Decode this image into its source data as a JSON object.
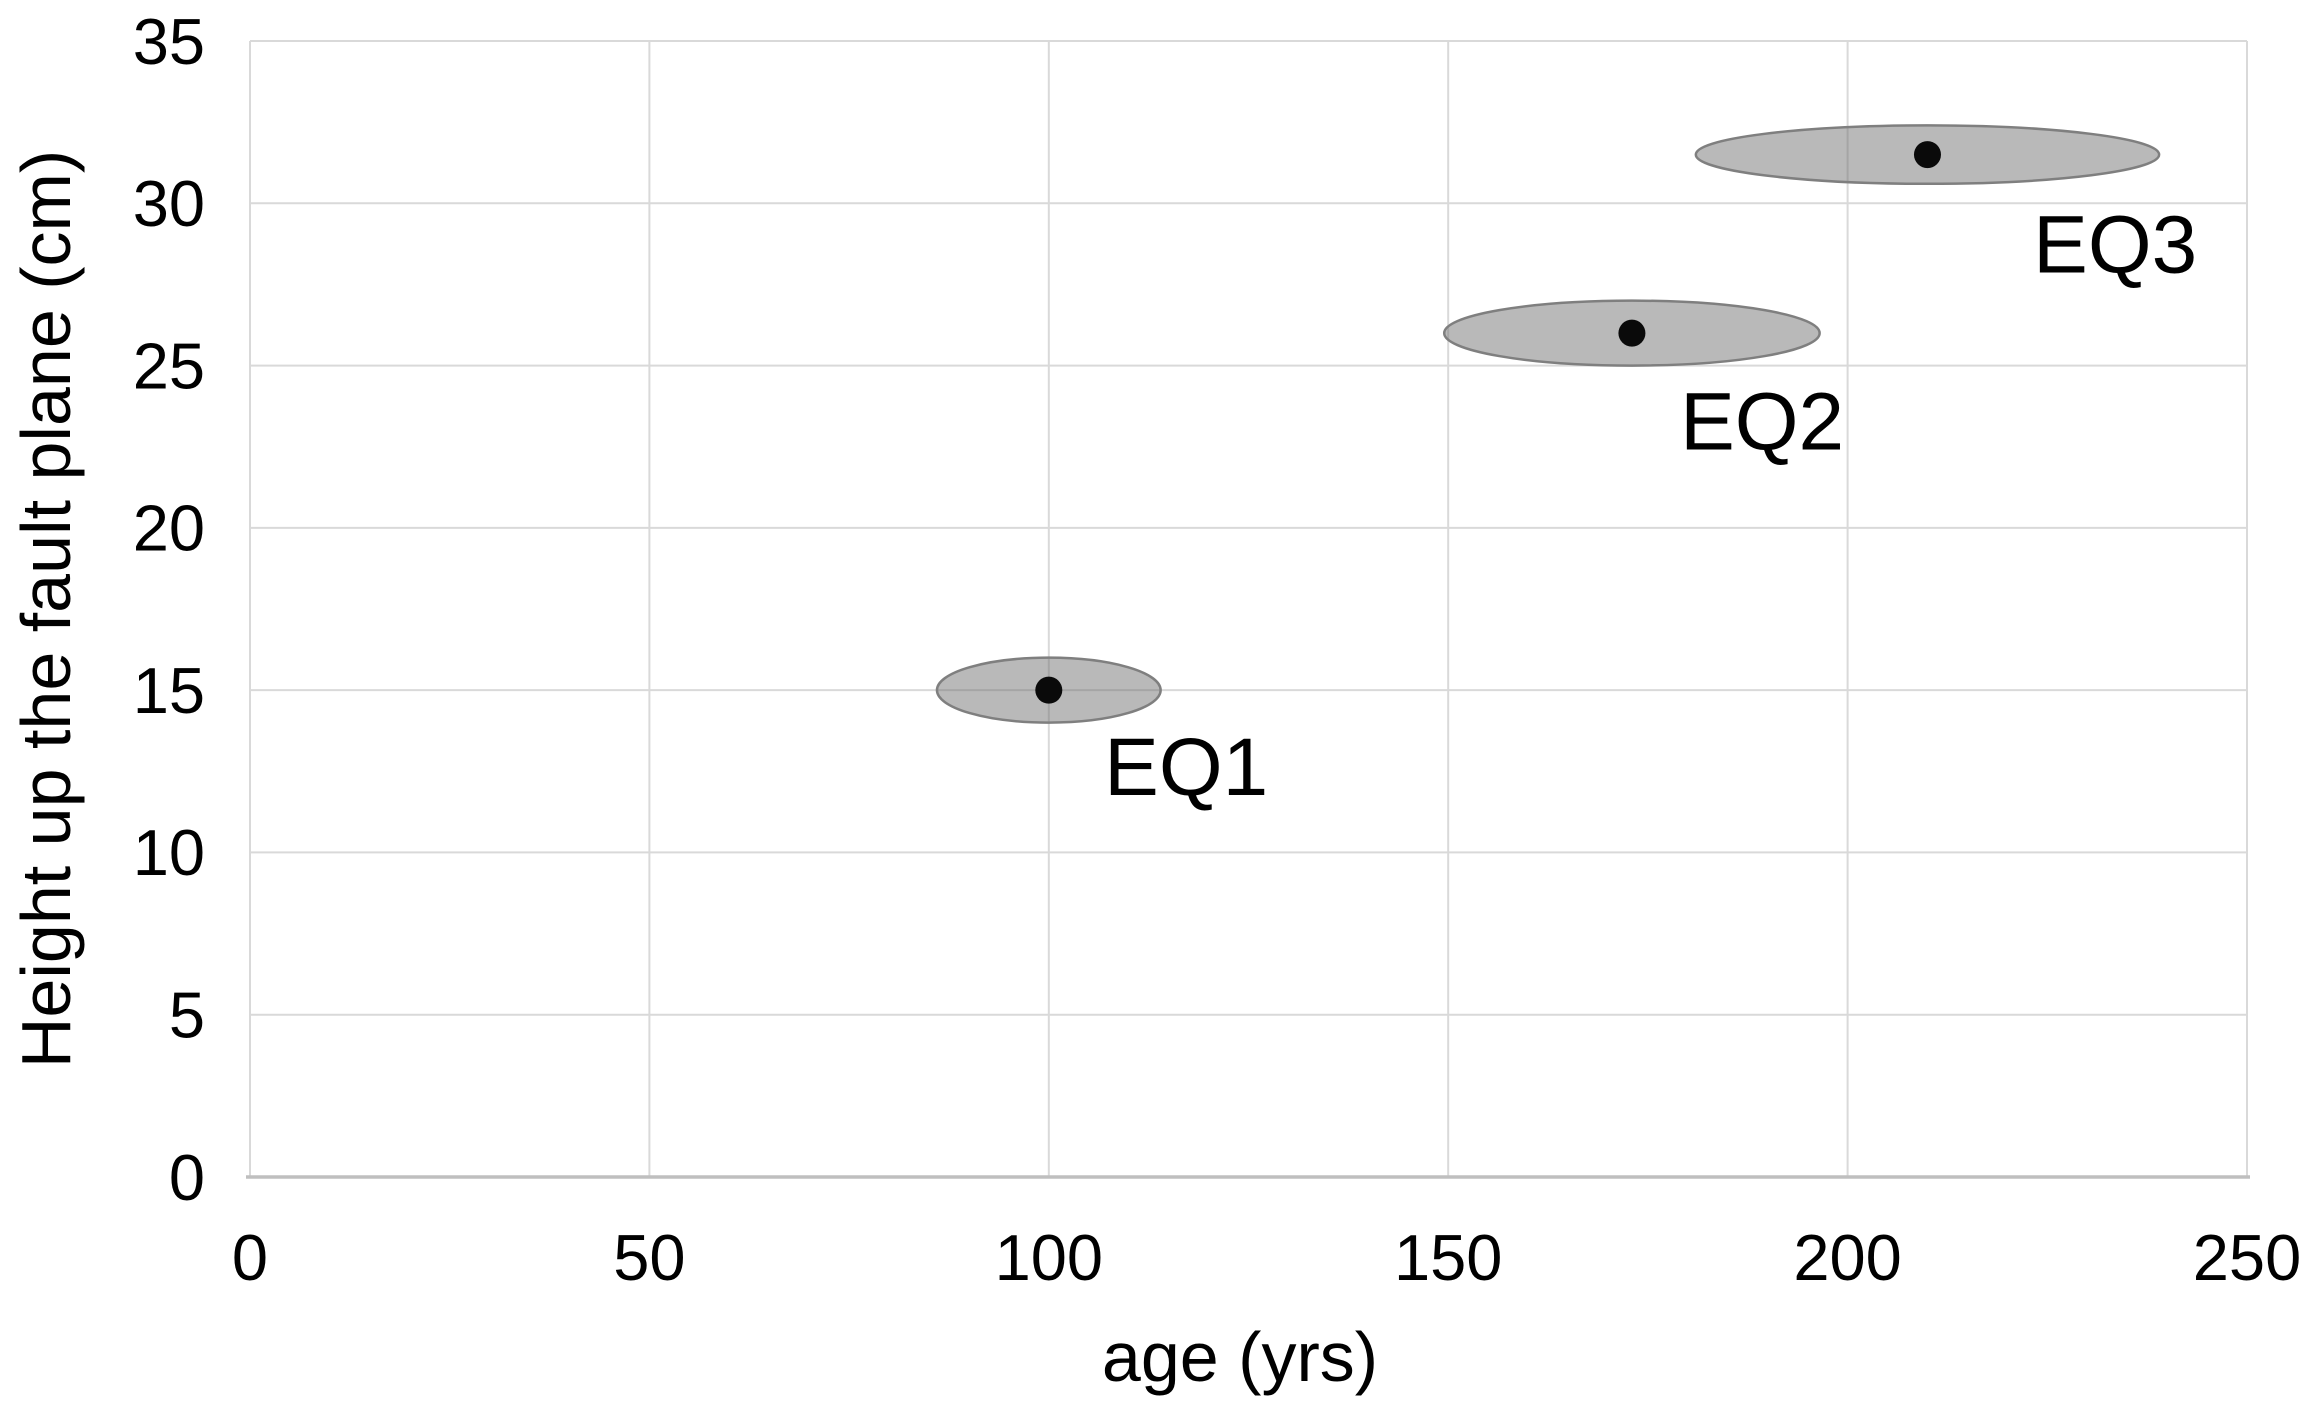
{
  "chart_data": {
    "type": "scatter",
    "title": "",
    "xlabel": "age (yrs)",
    "ylabel": "Height up the fault plane (cm)",
    "xlim": [
      0,
      250
    ],
    "ylim": [
      0,
      35
    ],
    "x_ticks": [
      0,
      50,
      100,
      150,
      200,
      250
    ],
    "y_ticks": [
      0,
      5,
      10,
      15,
      20,
      25,
      30,
      35
    ],
    "grid": true,
    "legend": "none",
    "point_style": "filled-black-dot-with-gray-uncertainty-ellipse",
    "series": [
      {
        "name": "EQ1",
        "x": 100,
        "y": 15,
        "x_uncertainty": 14,
        "y_uncertainty": 1.0,
        "label_x": 117.2,
        "label_y": 12.65
      },
      {
        "name": "EQ2",
        "x": 173,
        "y": 26,
        "x_uncertainty": 23.5,
        "y_uncertainty": 1.0,
        "label_x": 189.3,
        "label_y": 23.3
      },
      {
        "name": "EQ3",
        "x": 210,
        "y": 31.5,
        "x_uncertainty": 29,
        "y_uncertainty": 0.9,
        "label_x": 233.5,
        "label_y": 28.75
      }
    ]
  },
  "colors": {
    "background": "#ffffff",
    "gridline": "#d9d9d9",
    "plot_border": "#d9d9d9",
    "x_axis_line": "#bfbfbf",
    "ellipse_fill": "rgba(109,109,109,0.48)",
    "ellipse_stroke": "#7f7f7f",
    "point": "#0a0a0a",
    "text": "#000000"
  }
}
